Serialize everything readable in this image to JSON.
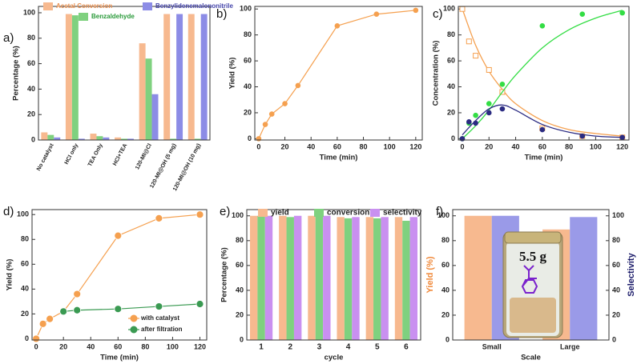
{
  "chart_data": [
    {
      "type": "bar",
      "label": "a)",
      "ylabel": "Percentage (%)",
      "categories": [
        "No catalyst",
        "HCl only",
        "TEA Only",
        "HCl+TEA",
        "120-MI@Cl",
        "120-MI@OH (5 mg)",
        "120-MI@OH (10 mg)"
      ],
      "series": [
        {
          "name": "Acetal Conversion",
          "color": "#f7b98f",
          "values": [
            6,
            99,
            5,
            2,
            76,
            99,
            99
          ]
        },
        {
          "name": "Benzaldehyde",
          "color": "#7fd17f",
          "values": [
            4,
            98,
            3,
            1,
            64,
            1,
            1
          ]
        },
        {
          "name": "Benzylidenemalononitrile",
          "color": "#8c8ce6",
          "values": [
            2,
            1,
            2,
            1,
            36,
            99,
            99
          ]
        }
      ],
      "ylim": [
        0,
        105
      ],
      "yticks": [
        0,
        20,
        40,
        60,
        80,
        100
      ]
    },
    {
      "type": "line",
      "label": "b)",
      "xlabel": "Time (min)",
      "ylabel": "Yield (%)",
      "x": [
        0,
        5,
        10,
        20,
        30,
        60,
        90,
        120
      ],
      "series": [
        {
          "color": "#f5a04f",
          "values": [
            0,
            11,
            19,
            27,
            41,
            87,
            96,
            99
          ]
        }
      ],
      "xlim": [
        -3,
        125
      ],
      "xticks": [
        0,
        20,
        40,
        60,
        80,
        100,
        120
      ],
      "ylim": [
        -1,
        102
      ],
      "yticks": [
        0,
        20,
        40,
        60,
        80,
        100
      ]
    },
    {
      "type": "scatter",
      "label": "c)",
      "xlabel": "Time (min)",
      "ylabel": "Concentration (%)",
      "x": [
        0,
        5,
        10,
        20,
        30,
        60,
        90,
        120
      ],
      "series": [
        {
          "color": "#f5a04f",
          "marker": "open-square",
          "values": [
            100,
            75,
            64,
            53,
            36,
            8,
            2,
            1
          ],
          "fit": {
            "x": [
              0,
              10,
              20,
              30,
              40,
              60,
              80,
              100,
              120
            ],
            "values": [
              100,
              72,
              52,
              38,
              27,
              14,
              7,
              4,
              2
            ]
          }
        },
        {
          "color": "#33dd44",
          "marker": "circle",
          "values": [
            0,
            12,
            18,
            27,
            42,
            87,
            96,
            97
          ],
          "fit": {
            "x": [
              0,
              10,
              20,
              30,
              40,
              60,
              80,
              100,
              120
            ],
            "values": [
              0,
              10,
              22,
              36,
              49,
              70,
              84,
              93,
              99
            ]
          }
        },
        {
          "color": "#2b2b82",
          "marker": "circle",
          "values": [
            0,
            13,
            12,
            20,
            23,
            7,
            2,
            1
          ],
          "fit": {
            "x": [
              0,
              10,
              20,
              30,
              40,
              60,
              80,
              100,
              120
            ],
            "values": [
              3,
              14,
              23,
              26,
              22,
              11,
              5,
              2,
              1
            ]
          }
        }
      ],
      "xlim": [
        -3,
        125
      ],
      "xticks": [
        0,
        20,
        40,
        60,
        80,
        100,
        120
      ],
      "ylim": [
        -1,
        102
      ],
      "yticks": [
        0,
        20,
        40,
        60,
        80,
        100
      ]
    },
    {
      "type": "line",
      "label": "d)",
      "xlabel": "Time (min)",
      "ylabel": "Yield (%)",
      "series": [
        {
          "name": "with catalyst",
          "color": "#f5a04f",
          "x": [
            0,
            5,
            10,
            20,
            30,
            60,
            90,
            120
          ],
          "values": [
            0,
            12,
            16,
            22,
            36,
            83,
            97,
            100
          ]
        },
        {
          "name": "after filtration",
          "color": "#3a9a52",
          "x": [
            20,
            30,
            60,
            90,
            120
          ],
          "values": [
            22,
            23,
            24,
            26,
            28
          ]
        }
      ],
      "legend": "lower right",
      "xlim": [
        -3,
        125
      ],
      "xticks": [
        0,
        20,
        40,
        60,
        80,
        100,
        120
      ],
      "ylim": [
        -1,
        104
      ],
      "yticks": [
        0,
        20,
        40,
        60,
        80,
        100
      ]
    },
    {
      "type": "bar",
      "label": "e)",
      "xlabel": "cycle",
      "ylabel": "Percentage (%)",
      "categories": [
        "1",
        "2",
        "3",
        "4",
        "5",
        "6"
      ],
      "series": [
        {
          "name": "yield",
          "color": "#f7b98f",
          "values": [
            100,
            100,
            100,
            99,
            99,
            99
          ]
        },
        {
          "name": "conversion",
          "color": "#7fd17f",
          "values": [
            100,
            99,
            100,
            98,
            98,
            96
          ]
        },
        {
          "name": "selectivity",
          "color": "#c990f0",
          "values": [
            100,
            100,
            100,
            99,
            99,
            99
          ]
        }
      ],
      "legend": "top",
      "ylim": [
        0,
        105
      ],
      "yticks": [
        0,
        20,
        40,
        60,
        80,
        100
      ]
    },
    {
      "type": "bar",
      "label": "f)",
      "xlabel": "Scale",
      "ylabel": "Yield (%)",
      "y2label": "Selectivity",
      "annotation": "5.5 g",
      "categories": [
        "Small",
        "Large"
      ],
      "series": [
        {
          "color": "#f7b98f",
          "values": [
            100,
            89
          ]
        },
        {
          "color": "#9a9ae8",
          "values": [
            100,
            99
          ],
          "axis": "y2"
        }
      ],
      "ylim": [
        0,
        105
      ],
      "yticks": [
        0,
        20,
        40,
        60,
        80,
        100
      ],
      "y2lim": [
        0,
        105
      ],
      "y2ticks": [
        0,
        20,
        40,
        60,
        80,
        100
      ]
    }
  ]
}
